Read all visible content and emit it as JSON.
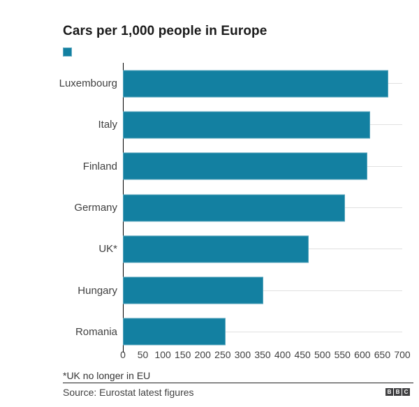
{
  "title": "Cars per 1,000 people in Europe",
  "legend": {
    "swatch_color": "#1380a1",
    "label": ""
  },
  "chart_data": {
    "type": "bar",
    "orientation": "horizontal",
    "title": "Cars per 1,000 people in Europe",
    "xlabel": "",
    "ylabel": "",
    "categories": [
      "Luxembourg",
      "Italy",
      "Finland",
      "Germany",
      "UK*",
      "Hungary",
      "Romania"
    ],
    "values": [
      665,
      620,
      612,
      556,
      466,
      351,
      257
    ],
    "x_ticks": [
      0,
      50,
      100,
      150,
      200,
      250,
      300,
      350,
      400,
      450,
      500,
      550,
      600,
      650,
      700
    ],
    "xlim": [
      0,
      700
    ],
    "grid": "horizontal-per-category",
    "legend_position": "top-left",
    "bar_color": "#1380a1",
    "gridline_color": "#e0e0e0",
    "axis_line_color": "#000000"
  },
  "footnote": "*UK no longer in EU",
  "source": "Source: Eurostat latest figures",
  "logo": {
    "letters": [
      "B",
      "B",
      "C"
    ],
    "block_color": "#404042"
  }
}
